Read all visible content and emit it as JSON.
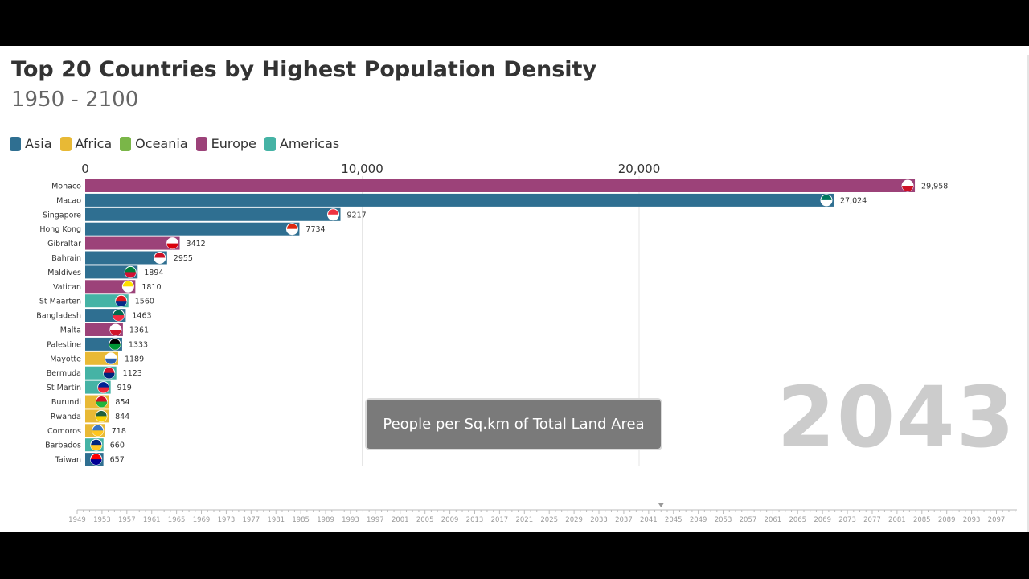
{
  "title": "Top 20 Countries by Highest Population Density",
  "subtitle": "1950 - 2100",
  "year_label": "2043",
  "note": "People per Sq.km of Total Land Area",
  "legend": [
    {
      "label": "Asia",
      "color": "#2f6f91"
    },
    {
      "label": "Africa",
      "color": "#e8b935"
    },
    {
      "label": "Oceania",
      "color": "#7ab648"
    },
    {
      "label": "Europe",
      "color": "#9c4279"
    },
    {
      "label": "Americas",
      "color": "#45b3a5"
    }
  ],
  "chart_data": {
    "type": "bar",
    "orientation": "horizontal",
    "title": "Top 20 Countries by Highest Population Density",
    "subtitle": "1950 - 2100",
    "xlabel": "People per Sq.km of Total Land Area",
    "xlim": [
      0,
      30000
    ],
    "xticks": [
      0,
      10000,
      20000
    ],
    "xtick_labels": [
      "0",
      "10,000",
      "20,000"
    ],
    "grid": true,
    "legend_position": "top-left",
    "current_year": 2043,
    "categories": [
      "Monaco",
      "Macao",
      "Singapore",
      "Hong Kong",
      "Gibraltar",
      "Bahrain",
      "Maldives",
      "Vatican",
      "St Maarten",
      "Bangladesh",
      "Malta",
      "Palestine",
      "Mayotte",
      "Bermuda",
      "St Martin",
      "Burundi",
      "Rwanda",
      "Comoros",
      "Barbados",
      "Taiwan"
    ],
    "values": [
      29958,
      27024,
      9217,
      7734,
      3412,
      2955,
      1894,
      1810,
      1560,
      1463,
      1361,
      1333,
      1189,
      1123,
      919,
      854,
      844,
      718,
      660,
      657
    ],
    "value_labels": [
      "29,958",
      "27,024",
      "9217",
      "7734",
      "3412",
      "2955",
      "1894",
      "1810",
      "1560",
      "1463",
      "1361",
      "1333",
      "1189",
      "1123",
      "919",
      "854",
      "844",
      "718",
      "660",
      "657"
    ],
    "regions": [
      "Europe",
      "Asia",
      "Asia",
      "Asia",
      "Europe",
      "Asia",
      "Asia",
      "Europe",
      "Americas",
      "Asia",
      "Europe",
      "Asia",
      "Africa",
      "Americas",
      "Americas",
      "Africa",
      "Africa",
      "Africa",
      "Americas",
      "Asia"
    ],
    "flag_colors": [
      [
        "#ffffff",
        "#ce1126"
      ],
      [
        "#00785e",
        "#ffffff"
      ],
      [
        "#ef3340",
        "#ffffff"
      ],
      [
        "#de2910",
        "#ffffff"
      ],
      [
        "#ffffff",
        "#da000c"
      ],
      [
        "#ce1126",
        "#ffffff"
      ],
      [
        "#007e3a",
        "#d21034"
      ],
      [
        "#ffe000",
        "#ffffff"
      ],
      [
        "#dc171d",
        "#012a87"
      ],
      [
        "#006a4e",
        "#f42a41"
      ],
      [
        "#ffffff",
        "#cf142b"
      ],
      [
        "#000000",
        "#009736"
      ],
      [
        "#ffffff",
        "#2a5fb0"
      ],
      [
        "#cf142b",
        "#00247d"
      ],
      [
        "#002395",
        "#ed2939"
      ],
      [
        "#ce1126",
        "#1eb53a"
      ],
      [
        "#20603d",
        "#fad201"
      ],
      [
        "#3a75c4",
        "#ffc61e"
      ],
      [
        "#00267f",
        "#ffc726"
      ],
      [
        "#fe0000",
        "#000095"
      ]
    ],
    "timeline": {
      "start": 1949,
      "end": 2100,
      "labels": [
        "1949",
        "1953",
        "1957",
        "1961",
        "1965",
        "1969",
        "1973",
        "1977",
        "1981",
        "1985",
        "1989",
        "1993",
        "1997",
        "2001",
        "2005",
        "2009",
        "2013",
        "2017",
        "2021",
        "2025",
        "2029",
        "2033",
        "2037",
        "2041",
        "2045",
        "2049",
        "2053",
        "2057",
        "2061",
        "2065",
        "2069",
        "2073",
        "2077",
        "2081",
        "2085",
        "2089",
        "2093",
        "2097"
      ]
    }
  }
}
